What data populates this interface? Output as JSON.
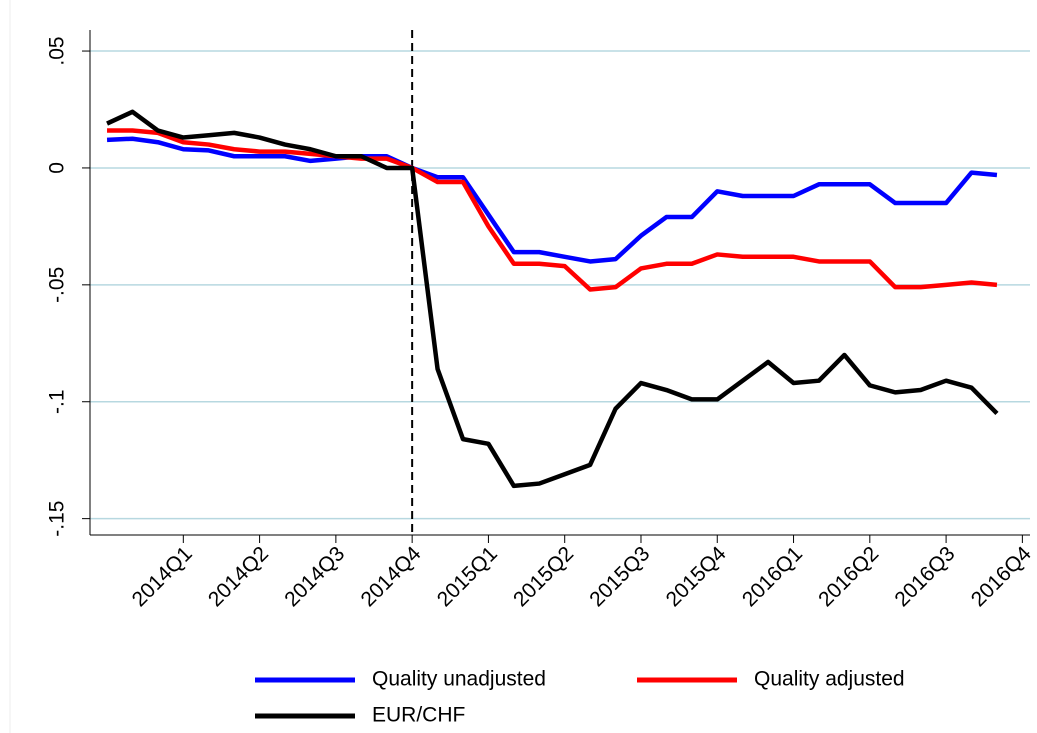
{
  "chart_data": {
    "type": "line",
    "x": [
      0,
      1,
      2,
      3,
      4,
      5,
      6,
      7,
      8,
      9,
      10,
      11,
      12,
      13,
      14,
      15,
      16,
      17,
      18,
      19,
      20,
      21,
      22,
      23,
      24,
      25,
      26,
      27,
      28,
      29,
      30,
      31,
      32,
      33,
      34,
      35
    ],
    "series": [
      {
        "name": "Quality unadjusted",
        "color": "#0000ff",
        "values": [
          0.012,
          0.0125,
          0.011,
          0.008,
          0.0075,
          0.005,
          0.005,
          0.005,
          0.003,
          0.004,
          0.005,
          0.005,
          0,
          -0.004,
          -0.004,
          -0.02,
          -0.036,
          -0.036,
          -0.038,
          -0.04,
          -0.039,
          -0.029,
          -0.021,
          -0.021,
          -0.01,
          -0.012,
          -0.012,
          -0.012,
          -0.007,
          -0.007,
          -0.007,
          -0.015,
          -0.015,
          -0.015,
          -0.002,
          -0.003
        ]
      },
      {
        "name": "Quality adjusted",
        "color": "#ff0000",
        "values": [
          0.016,
          0.016,
          0.015,
          0.011,
          0.01,
          0.008,
          0.007,
          0.007,
          0.006,
          0.005,
          0.004,
          0.004,
          0,
          -0.006,
          -0.006,
          -0.025,
          -0.041,
          -0.041,
          -0.042,
          -0.052,
          -0.051,
          -0.043,
          -0.041,
          -0.041,
          -0.037,
          -0.038,
          -0.038,
          -0.038,
          -0.04,
          -0.04,
          -0.04,
          -0.051,
          -0.051,
          -0.05,
          -0.049,
          -0.05
        ]
      },
      {
        "name": "EUR/CHF",
        "color": "#000000",
        "values": [
          0.019,
          0.024,
          0.016,
          0.013,
          0.014,
          0.015,
          0.013,
          0.01,
          0.008,
          0.005,
          0.005,
          0,
          0,
          -0.086,
          -0.116,
          -0.118,
          -0.136,
          -0.135,
          -0.131,
          -0.127,
          -0.103,
          -0.092,
          -0.095,
          -0.099,
          -0.099,
          -0.091,
          -0.083,
          -0.092,
          -0.091,
          -0.08,
          -0.093,
          -0.096,
          -0.095,
          -0.091,
          -0.094,
          -0.105
        ]
      }
    ],
    "xlim": [
      -0.67,
      36.3
    ],
    "xticks": [
      {
        "value": 3,
        "label": "2014Q1"
      },
      {
        "value": 6,
        "label": "2014Q2"
      },
      {
        "value": 9,
        "label": "2014Q3"
      },
      {
        "value": 12,
        "label": "2014Q4"
      },
      {
        "value": 15,
        "label": "2015Q1"
      },
      {
        "value": 18,
        "label": "2015Q2"
      },
      {
        "value": 21,
        "label": "2015Q3"
      },
      {
        "value": 24,
        "label": "2015Q4"
      },
      {
        "value": 27,
        "label": "2016Q1"
      },
      {
        "value": 30,
        "label": "2016Q2"
      },
      {
        "value": 33,
        "label": "2016Q3"
      },
      {
        "value": 36,
        "label": "2016Q4"
      }
    ],
    "ylim": [
      -0.157,
      0.059
    ],
    "yticks": [
      {
        "value": 0.05,
        "label": ".05"
      },
      0,
      {
        "value": -0.05,
        "label": "-.05"
      },
      {
        "value": -0.1,
        "label": "-.1"
      },
      {
        "value": -0.15,
        "label": "-.15"
      }
    ],
    "xline": 12,
    "grid": true
  }
}
